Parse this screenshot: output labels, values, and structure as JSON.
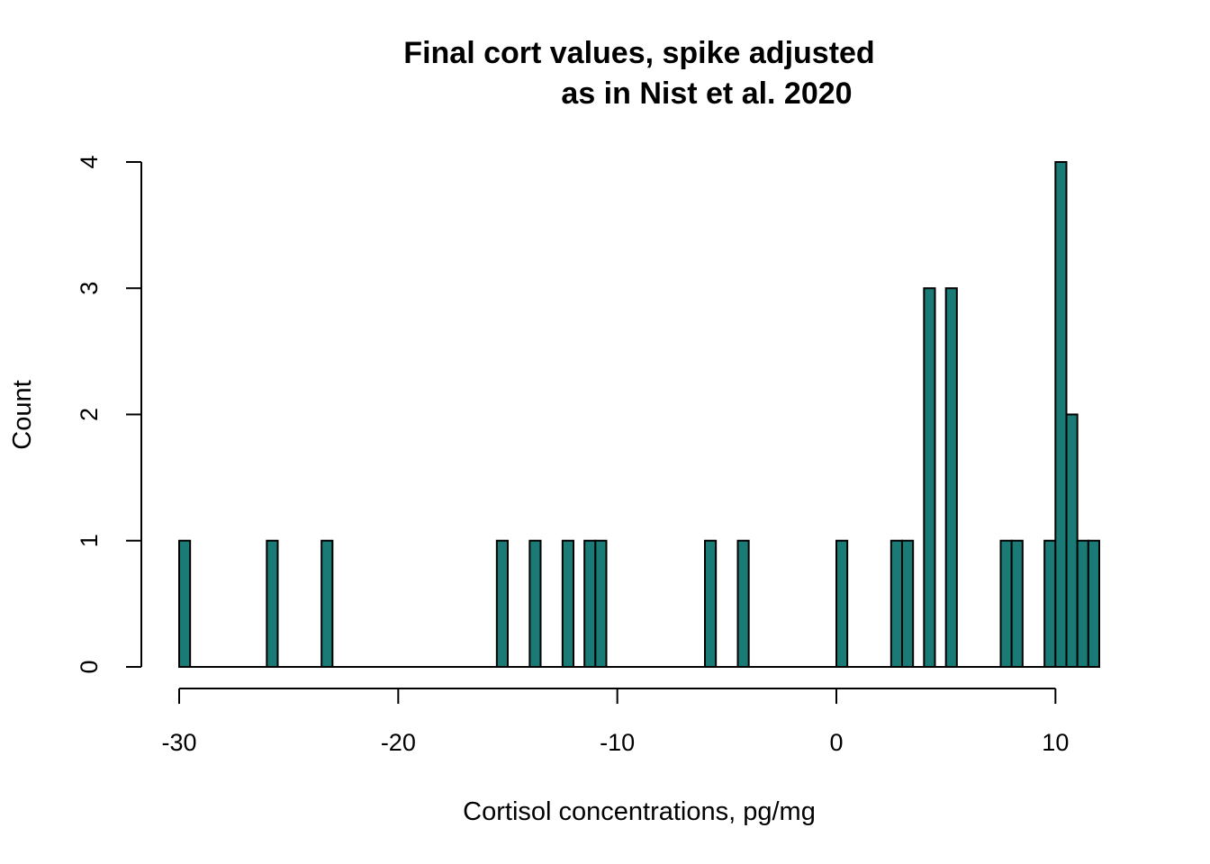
{
  "chart_data": {
    "type": "bar",
    "title_lines": [
      "Final cort values, spike adjusted",
      "as in Nist et al. 2020"
    ],
    "xlabel": "Cortisol concentrations, pg/mg",
    "ylabel": "Count",
    "xlim": [
      -30,
      12
    ],
    "ylim": [
      0,
      4
    ],
    "x_ticks": [
      -30,
      -20,
      -10,
      0,
      10
    ],
    "y_ticks": [
      0,
      1,
      2,
      3,
      4
    ],
    "bin_width": 0.5,
    "grid": false,
    "bar_color": "#1a7a76",
    "bars": [
      {
        "x0": -30.0,
        "x1": -29.5,
        "count": 1
      },
      {
        "x0": -26.0,
        "x1": -25.5,
        "count": 1
      },
      {
        "x0": -23.5,
        "x1": -23.0,
        "count": 1
      },
      {
        "x0": -15.5,
        "x1": -15.0,
        "count": 1
      },
      {
        "x0": -14.0,
        "x1": -13.5,
        "count": 1
      },
      {
        "x0": -12.5,
        "x1": -12.0,
        "count": 1
      },
      {
        "x0": -11.5,
        "x1": -11.0,
        "count": 1
      },
      {
        "x0": -11.0,
        "x1": -10.5,
        "count": 1
      },
      {
        "x0": -6.0,
        "x1": -5.5,
        "count": 1
      },
      {
        "x0": -4.5,
        "x1": -4.0,
        "count": 1
      },
      {
        "x0": 0.0,
        "x1": 0.5,
        "count": 1
      },
      {
        "x0": 2.5,
        "x1": 3.0,
        "count": 1
      },
      {
        "x0": 3.0,
        "x1": 3.5,
        "count": 1
      },
      {
        "x0": 4.0,
        "x1": 4.5,
        "count": 3
      },
      {
        "x0": 5.0,
        "x1": 5.5,
        "count": 3
      },
      {
        "x0": 7.5,
        "x1": 8.0,
        "count": 1
      },
      {
        "x0": 8.0,
        "x1": 8.5,
        "count": 1
      },
      {
        "x0": 9.5,
        "x1": 10.0,
        "count": 1
      },
      {
        "x0": 10.0,
        "x1": 10.5,
        "count": 4
      },
      {
        "x0": 10.5,
        "x1": 11.0,
        "count": 2
      },
      {
        "x0": 11.0,
        "x1": 11.5,
        "count": 1
      },
      {
        "x0": 11.5,
        "x1": 12.0,
        "count": 1
      }
    ]
  }
}
